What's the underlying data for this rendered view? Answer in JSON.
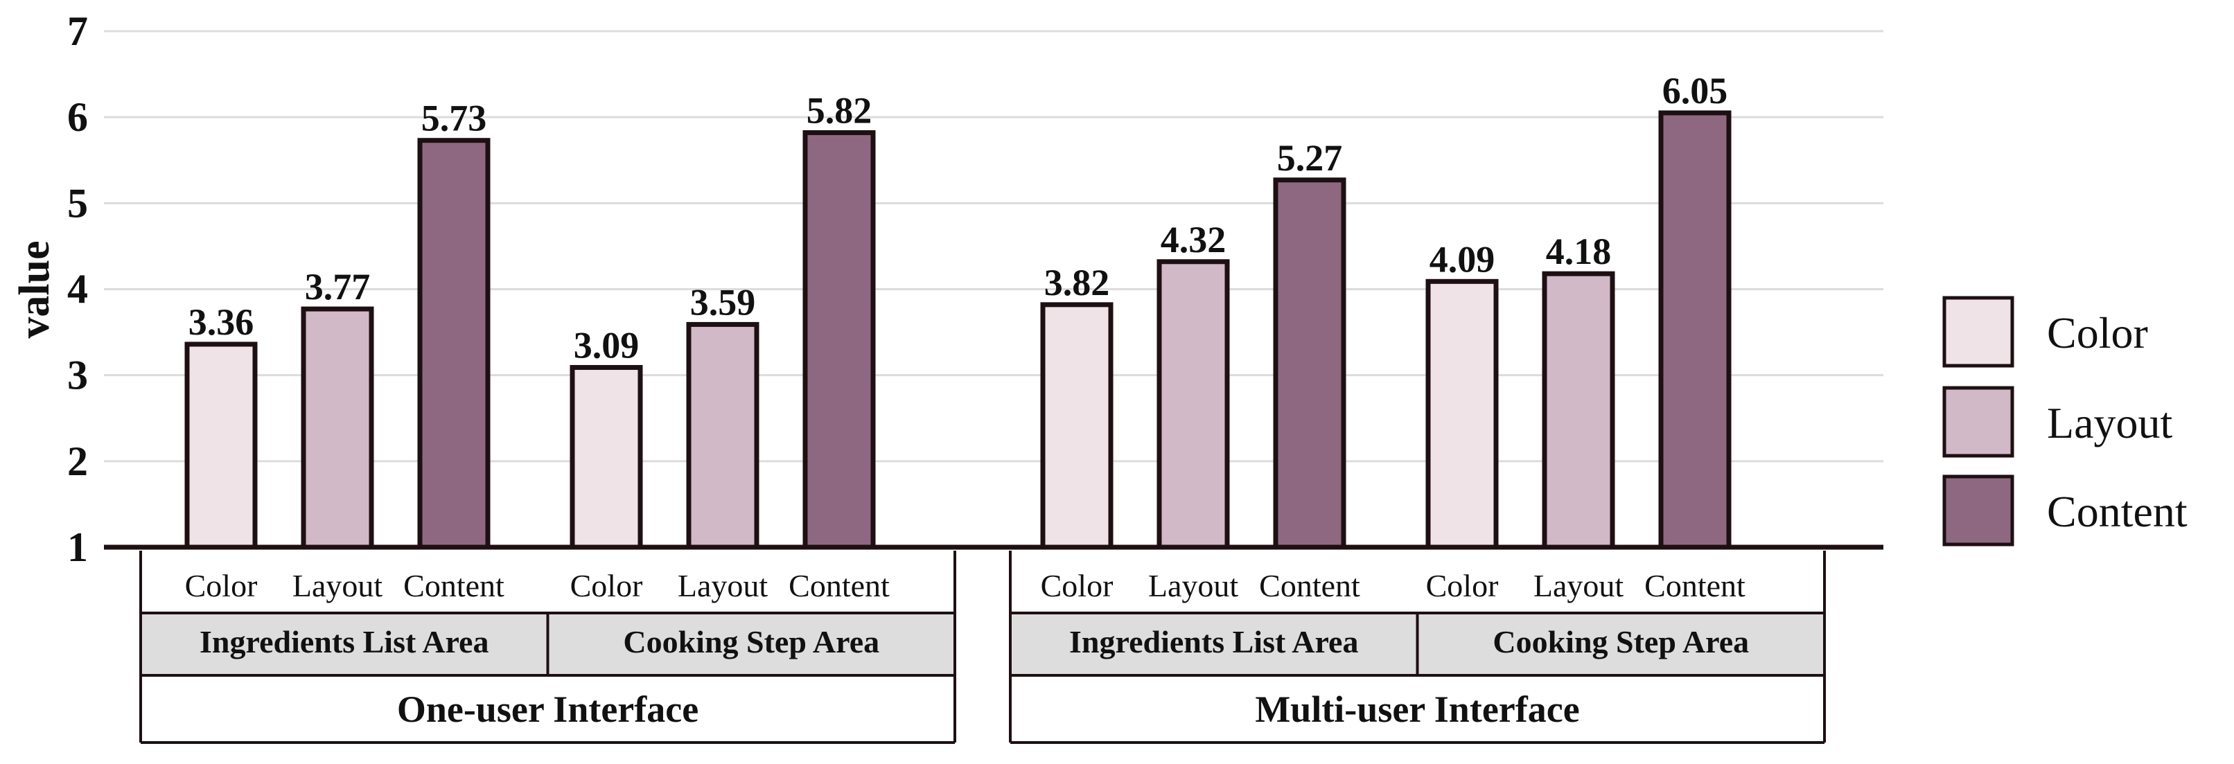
{
  "chart_data": {
    "type": "bar",
    "ylabel": "value",
    "ylim": [
      1,
      7
    ],
    "yticks": [
      "1",
      "2",
      "3",
      "4",
      "5",
      "6",
      "7"
    ],
    "grid": "horizontal",
    "legend": {
      "placement": "right",
      "entries": [
        "Color",
        "Layout",
        "Content"
      ]
    },
    "series_colors": {
      "Color": "#F0E3E7",
      "Layout": "#D2B9C8",
      "Content": "#8E6881"
    },
    "interfaces": [
      {
        "label": "One-user Interface",
        "areas": [
          {
            "label": "Ingredients List Area",
            "bars": [
              {
                "category": "Color",
                "value": 3.36,
                "value_label": "3.36"
              },
              {
                "category": "Layout",
                "value": 3.77,
                "value_label": "3.77"
              },
              {
                "category": "Content",
                "value": 5.73,
                "value_label": "5.73"
              }
            ]
          },
          {
            "label": "Cooking Step Area",
            "bars": [
              {
                "category": "Color",
                "value": 3.09,
                "value_label": "3.09"
              },
              {
                "category": "Layout",
                "value": 3.59,
                "value_label": "3.59"
              },
              {
                "category": "Content",
                "value": 5.82,
                "value_label": "5.82"
              }
            ]
          }
        ]
      },
      {
        "label": "Multi-user Interface",
        "areas": [
          {
            "label": "Ingredients List Area",
            "bars": [
              {
                "category": "Color",
                "value": 3.82,
                "value_label": "3.82"
              },
              {
                "category": "Layout",
                "value": 4.32,
                "value_label": "4.32"
              },
              {
                "category": "Content",
                "value": 5.27,
                "value_label": "5.27"
              }
            ]
          },
          {
            "label": "Cooking Step Area",
            "bars": [
              {
                "category": "Color",
                "value": 4.09,
                "value_label": "4.09"
              },
              {
                "category": "Layout",
                "value": 4.18,
                "value_label": "4.18"
              },
              {
                "category": "Content",
                "value": 6.05,
                "value_label": "6.05"
              }
            ]
          }
        ]
      }
    ]
  }
}
